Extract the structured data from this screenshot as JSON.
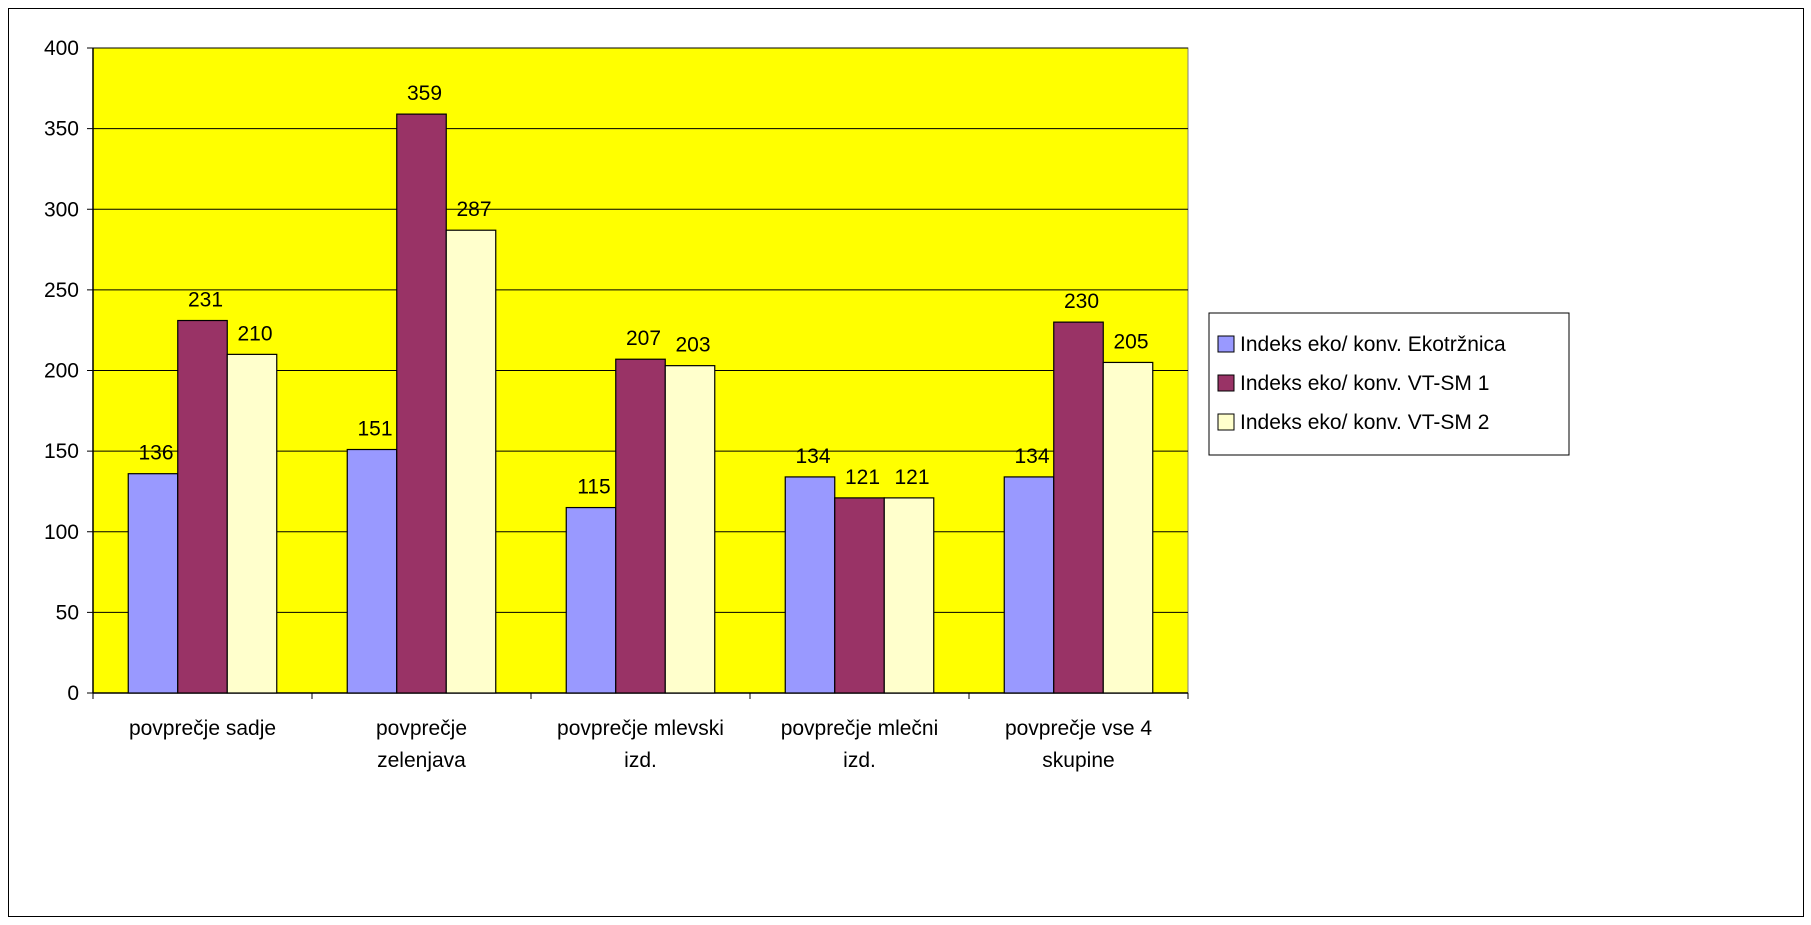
{
  "chart_data": {
    "type": "bar",
    "categories": [
      [
        "povprečje sadje"
      ],
      [
        "povprečje",
        "zelenjava"
      ],
      [
        "povprečje mlevski",
        "izd."
      ],
      [
        "povprečje mlečni",
        "izd."
      ],
      [
        "povprečje vse 4",
        "skupine"
      ]
    ],
    "series": [
      {
        "name": "Indeks eko/ konv. Ekotržnica",
        "values": [
          136,
          151,
          115,
          134,
          134
        ],
        "color": "#9999FF"
      },
      {
        "name": "Indeks eko/ konv. VT-SM 1",
        "values": [
          231,
          359,
          207,
          121,
          230
        ],
        "color": "#993366"
      },
      {
        "name": "Indeks eko/ konv. VT-SM 2",
        "values": [
          210,
          287,
          203,
          121,
          205
        ],
        "color": "#FFFFCC"
      }
    ],
    "ylim": [
      0,
      400
    ],
    "yticks": [
      0,
      50,
      100,
      150,
      200,
      250,
      300,
      350,
      400
    ],
    "plot_background": "#FFFF00",
    "grid": true,
    "legend_position": "right",
    "title": "",
    "xlabel": "",
    "ylabel": ""
  }
}
